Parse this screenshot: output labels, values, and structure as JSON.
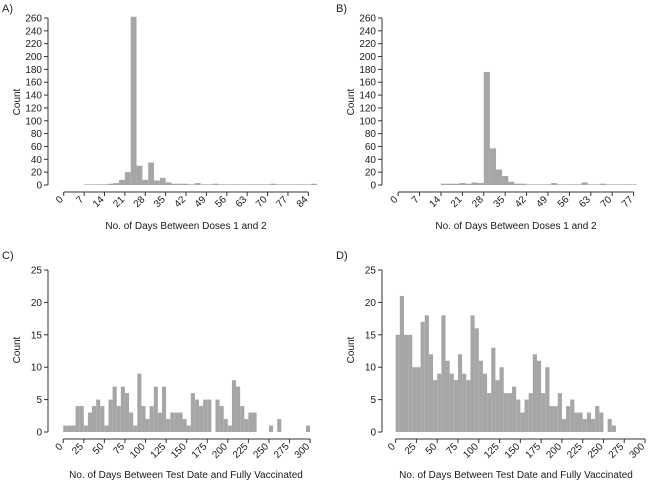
{
  "chart_data": [
    {
      "type": "bar",
      "panel_label": "A)",
      "xlabel": "No. of Days Between Doses 1 and 2",
      "ylabel": "Count",
      "xlim": [
        -3,
        88
      ],
      "ylim": [
        0,
        260
      ],
      "xticks": [
        0,
        7,
        14,
        21,
        28,
        35,
        42,
        49,
        56,
        63,
        70,
        77,
        84
      ],
      "yticks": [
        0,
        20,
        40,
        60,
        80,
        100,
        120,
        140,
        160,
        180,
        200,
        220,
        240,
        260
      ],
      "bin_start": 7,
      "bin_width": 2,
      "values": [
        1,
        1,
        1,
        1,
        2,
        3,
        8,
        20,
        262,
        30,
        8,
        35,
        7,
        11,
        4,
        2,
        2,
        2,
        1,
        3,
        1,
        1,
        2,
        1,
        1,
        1,
        1,
        1,
        1,
        1,
        1,
        1,
        2,
        1,
        1,
        1,
        1,
        1,
        1,
        2
      ]
    },
    {
      "type": "bar",
      "panel_label": "B)",
      "xlabel": "No. of Days Between Doses 1 and 2",
      "ylabel": "Count",
      "xlim": [
        -3,
        84
      ],
      "ylim": [
        0,
        260
      ],
      "xticks": [
        0,
        7,
        14,
        21,
        28,
        35,
        42,
        49,
        56,
        63,
        70,
        77
      ],
      "yticks": [
        0,
        20,
        40,
        60,
        80,
        100,
        120,
        140,
        160,
        180,
        200,
        220,
        240,
        260
      ],
      "bin_start": 14,
      "bin_width": 2,
      "values": [
        2,
        2,
        2,
        3,
        2,
        4,
        3,
        176,
        57,
        24,
        14,
        5,
        2,
        2,
        1,
        1,
        1,
        1,
        3,
        1,
        1,
        1,
        1,
        4,
        1,
        1,
        2,
        1,
        1,
        1,
        1,
        1
      ]
    },
    {
      "type": "bar",
      "panel_label": "C)",
      "xlabel": "No. of Days Between Test Date and Fully Vaccinated",
      "ylabel": "Count",
      "xlim": [
        -10,
        312
      ],
      "ylim": [
        0,
        25
      ],
      "xticks": [
        0,
        25,
        50,
        75,
        100,
        125,
        150,
        175,
        200,
        225,
        250,
        275,
        300
      ],
      "yticks": [
        0,
        5,
        10,
        15,
        20,
        25
      ],
      "bin_start": 0,
      "bin_width": 5,
      "values": [
        1,
        1,
        1,
        4,
        4,
        1,
        3,
        4,
        5,
        4,
        1,
        5,
        7,
        4,
        7,
        6,
        3,
        1,
        9,
        4,
        2,
        4,
        7,
        3,
        7,
        2,
        3,
        3,
        3,
        2,
        1,
        6,
        5,
        4,
        5,
        5,
        0,
        5,
        4,
        2,
        1,
        8,
        7,
        4,
        2,
        3,
        3,
        0,
        0,
        0,
        1,
        0,
        2,
        0,
        0,
        0,
        0,
        0,
        0,
        1
      ]
    },
    {
      "type": "bar",
      "panel_label": "D)",
      "xlabel": "No. of Days Between Test Date and Fully Vaccinated",
      "ylabel": "Count",
      "xlim": [
        -8,
        312
      ],
      "ylim": [
        0,
        25
      ],
      "xticks": [
        0,
        25,
        50,
        75,
        100,
        125,
        150,
        175,
        200,
        225,
        250,
        275,
        300
      ],
      "yticks": [
        0,
        5,
        10,
        15,
        20,
        25
      ],
      "bin_start": 0,
      "bin_width": 5,
      "values": [
        15,
        21,
        15,
        15,
        10,
        10,
        17,
        18,
        12,
        8,
        9,
        18,
        11,
        9,
        8,
        12,
        9,
        8,
        18,
        16,
        11,
        9,
        6,
        13,
        8,
        10,
        6,
        6,
        7,
        5,
        3,
        5,
        6,
        12,
        11,
        6,
        10,
        4,
        4,
        6,
        2,
        4,
        5,
        3,
        3,
        2,
        3,
        2,
        4,
        3,
        0,
        2,
        1
      ]
    }
  ]
}
